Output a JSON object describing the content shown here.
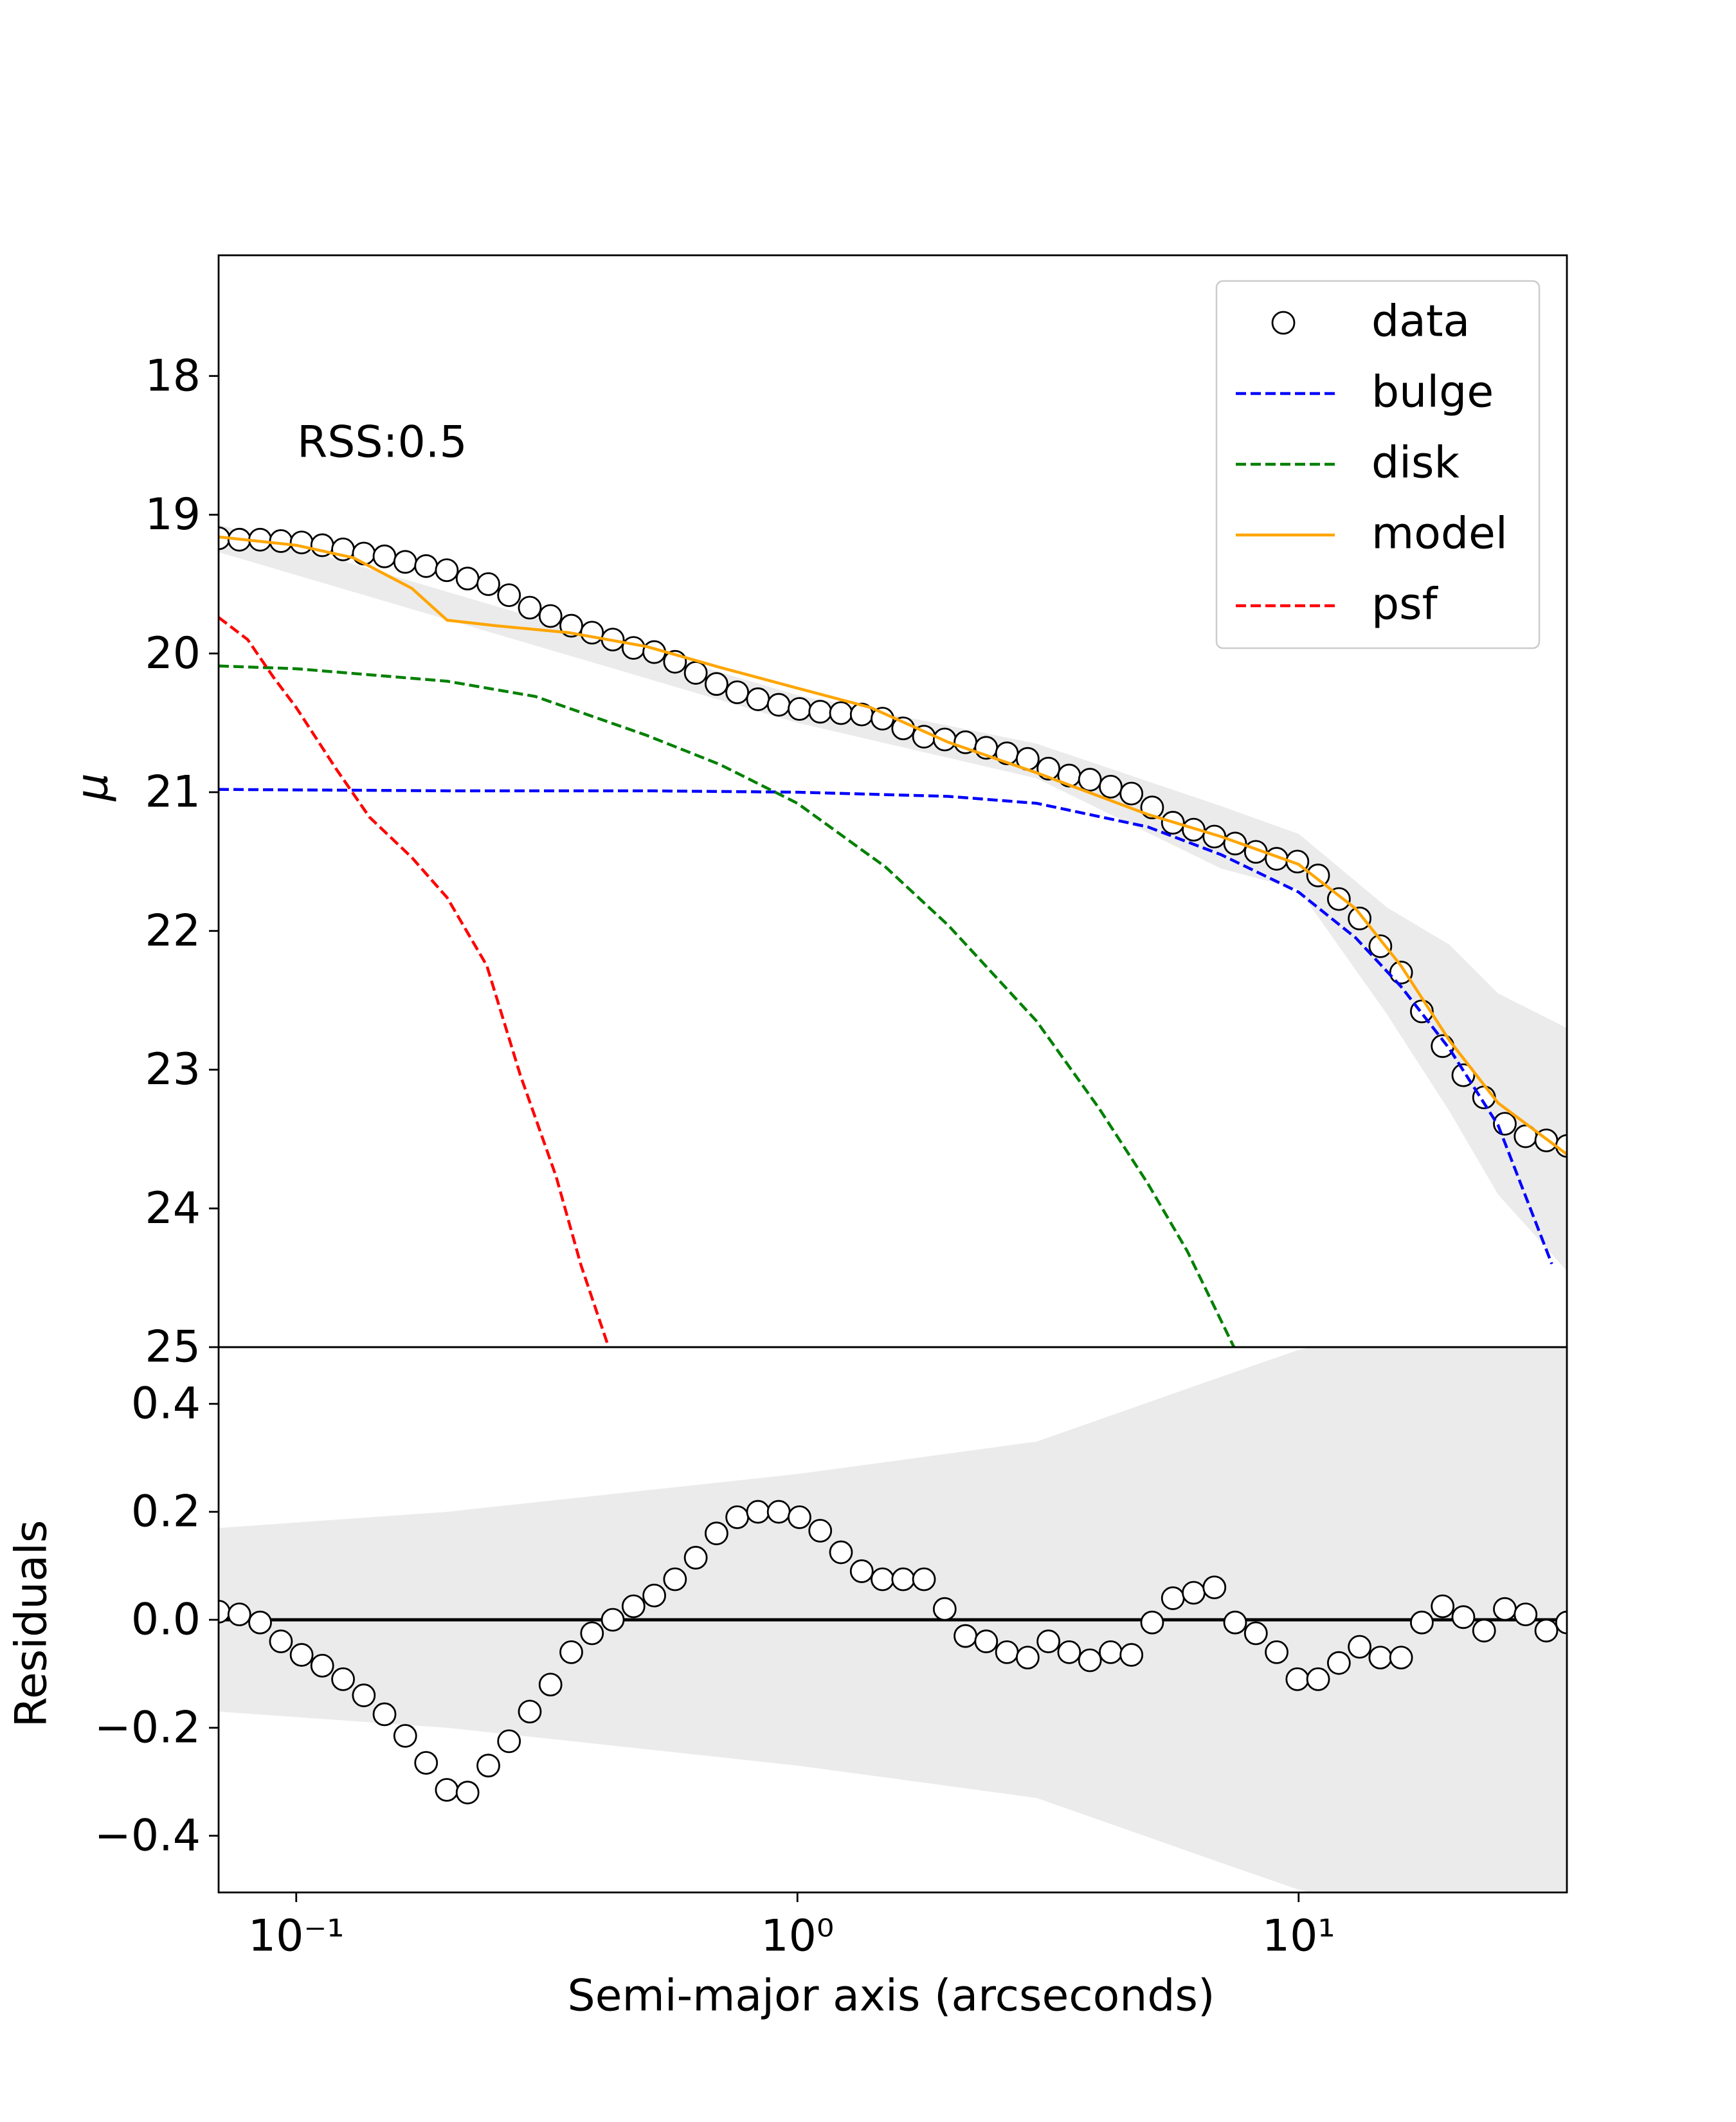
{
  "chart_data": [
    {
      "type": "line",
      "ylabel": "μ",
      "annotation": "RSS:0.5",
      "log_x": true,
      "legend": "upper right",
      "xlim": [
        0.07,
        34.3
      ],
      "ylim": [
        25,
        17.13
      ],
      "yticks": [
        18,
        19,
        20,
        21,
        22,
        23,
        24,
        25
      ],
      "band": {
        "color": "#ebebeb",
        "x": [
          0.07,
          1,
          3,
          7,
          10,
          15,
          20,
          25,
          34.3
        ],
        "lower": [
          19.07,
          20.3,
          20.65,
          21.1,
          21.3,
          21.83,
          22.1,
          22.45,
          22.7
        ],
        "upper": [
          19.27,
          20.5,
          20.9,
          21.55,
          21.7,
          22.6,
          23.3,
          23.9,
          24.45
        ]
      },
      "series": [
        {
          "name": "data",
          "kind": "points",
          "color": "#000000",
          "x": [
            0.07,
            0.077,
            0.0847,
            0.0932,
            0.1025,
            0.1127,
            0.124,
            0.1364,
            0.15,
            0.165,
            0.1816,
            0.1997,
            0.2197,
            0.2417,
            0.2658,
            0.2924,
            0.3216,
            0.3538,
            0.3892,
            0.4281,
            0.4709,
            0.518,
            0.5698,
            0.6268,
            0.6895,
            0.7584,
            0.8343,
            0.9177,
            1.0095,
            1.1104,
            1.2215,
            1.3436,
            1.478,
            1.6258,
            1.7884,
            1.9672,
            2.1639,
            2.3803,
            2.6184,
            2.8802,
            3.1682,
            3.485,
            3.8335,
            4.2169,
            4.6386,
            5.1024,
            5.6127,
            6.1739,
            6.7913,
            7.4705,
            8.2175,
            9.0393,
            9.9432,
            10.9375,
            12.0313,
            13.2344,
            14.5578,
            16.0136,
            17.615,
            19.3765,
            21.3141,
            23.4456,
            25.7901,
            28.3691,
            31.206,
            34.3266
          ],
          "values": [
            19.17,
            19.18,
            19.18,
            19.19,
            19.2,
            19.22,
            19.25,
            19.28,
            19.3,
            19.34,
            19.37,
            19.4,
            19.46,
            19.5,
            19.58,
            19.67,
            19.73,
            19.8,
            19.85,
            19.9,
            19.96,
            19.99,
            20.06,
            20.14,
            20.22,
            20.28,
            20.33,
            20.37,
            20.4,
            20.42,
            20.43,
            20.44,
            20.47,
            20.54,
            20.6,
            20.62,
            20.64,
            20.68,
            20.72,
            20.76,
            20.83,
            20.88,
            20.91,
            20.96,
            21.01,
            21.11,
            21.22,
            21.27,
            21.32,
            21.37,
            21.43,
            21.48,
            21.5,
            21.6,
            21.77,
            21.91,
            22.11,
            22.3,
            22.58,
            22.83,
            23.04,
            23.2,
            23.39,
            23.48,
            23.51,
            23.55
          ]
        },
        {
          "name": "bulge",
          "kind": "line",
          "dashed": true,
          "color": "#0000ff",
          "x": [
            0.07,
            0.2,
            0.5,
            1,
            2,
            3,
            5,
            7,
            10,
            13,
            16,
            20,
            25,
            32
          ],
          "values": [
            20.98,
            20.99,
            20.99,
            21.0,
            21.03,
            21.08,
            21.25,
            21.45,
            21.72,
            22.05,
            22.4,
            22.85,
            23.4,
            24.4
          ]
        },
        {
          "name": "disk",
          "kind": "line",
          "dashed": true,
          "color": "#008000",
          "x": [
            0.07,
            0.1,
            0.2,
            0.3,
            0.5,
            0.7,
            1,
            1.5,
            2,
            3,
            4,
            5,
            6,
            7.5
          ],
          "values": [
            20.09,
            20.11,
            20.2,
            20.31,
            20.59,
            20.8,
            21.08,
            21.54,
            21.96,
            22.65,
            23.28,
            23.82,
            24.31,
            25.03
          ]
        },
        {
          "name": "model",
          "kind": "line",
          "dashed": false,
          "color": "#ffa500",
          "x": [
            0.07,
            0.1,
            0.13,
            0.17,
            0.2,
            0.25,
            0.35,
            0.5,
            0.7,
            1,
            1.4,
            2,
            3,
            5,
            7,
            10,
            13,
            16,
            20,
            25,
            34.3
          ],
          "values": [
            19.16,
            19.22,
            19.31,
            19.53,
            19.76,
            19.8,
            19.85,
            19.95,
            20.1,
            20.25,
            20.39,
            20.64,
            20.86,
            21.16,
            21.32,
            21.52,
            21.84,
            22.25,
            22.79,
            23.24,
            23.61
          ]
        },
        {
          "name": "psf",
          "kind": "line",
          "dashed": true,
          "color": "#ff0000",
          "x": [
            0.07,
            0.08,
            0.09,
            0.1,
            0.12,
            0.14,
            0.17,
            0.2,
            0.24,
            0.28,
            0.33,
            0.37,
            0.42
          ],
          "values": [
            19.74,
            19.9,
            20.17,
            20.39,
            20.83,
            21.18,
            21.47,
            21.76,
            22.25,
            23.04,
            23.77,
            24.41,
            25.0
          ]
        }
      ]
    },
    {
      "type": "scatter",
      "ylabel": "Residuals",
      "xlabel": "Semi-major axis (arcseconds)",
      "log_x": true,
      "xlim": [
        0.07,
        34.3
      ],
      "ylim": [
        -0.505,
        0.505
      ],
      "xticks": [
        {
          "value": 0.1,
          "label": "10⁻¹"
        },
        {
          "value": 1,
          "label": "10⁰"
        },
        {
          "value": 10,
          "label": "10¹"
        }
      ],
      "yticks": [
        {
          "value": -0.4,
          "label": "−0.4"
        },
        {
          "value": -0.2,
          "label": "−0.2"
        },
        {
          "value": 0,
          "label": "0.0"
        },
        {
          "value": 0.2,
          "label": "0.2"
        },
        {
          "value": 0.4,
          "label": "0.4"
        }
      ],
      "hline": 0,
      "color": "#000000",
      "band": {
        "color": "#ebebeb",
        "x": [
          0.07,
          0.2,
          1,
          3,
          7,
          10,
          34.3
        ],
        "lower": [
          -0.17,
          -0.2,
          -0.27,
          -0.33,
          -0.45,
          -0.5,
          -0.6
        ],
        "upper": [
          0.17,
          0.2,
          0.27,
          0.33,
          0.45,
          0.5,
          0.6
        ]
      },
      "x": [
        0.07,
        0.077,
        0.0847,
        0.0932,
        0.1025,
        0.1127,
        0.124,
        0.1364,
        0.15,
        0.165,
        0.1816,
        0.1997,
        0.2197,
        0.2417,
        0.2658,
        0.2924,
        0.3216,
        0.3538,
        0.3892,
        0.4281,
        0.4709,
        0.518,
        0.5698,
        0.6268,
        0.6895,
        0.7584,
        0.8343,
        0.9177,
        1.0095,
        1.1104,
        1.2215,
        1.3436,
        1.478,
        1.6258,
        1.7884,
        1.9672,
        2.1639,
        2.3803,
        2.6184,
        2.8802,
        3.1682,
        3.485,
        3.8335,
        4.2169,
        4.6386,
        5.1024,
        5.6127,
        6.1739,
        6.7913,
        7.4705,
        8.2175,
        9.0393,
        9.9432,
        10.9375,
        12.0313,
        13.2344,
        14.5578,
        16.0136,
        17.615,
        19.3765,
        21.3141,
        23.4456,
        25.7901,
        28.3691,
        31.206,
        34.3266
      ],
      "values": [
        0.015,
        0.01,
        -0.005,
        -0.04,
        -0.065,
        -0.085,
        -0.11,
        -0.14,
        -0.175,
        -0.215,
        -0.265,
        -0.315,
        -0.32,
        -0.27,
        -0.225,
        -0.17,
        -0.12,
        -0.06,
        -0.025,
        0.0,
        0.025,
        0.045,
        0.075,
        0.115,
        0.16,
        0.19,
        0.2,
        0.2,
        0.19,
        0.165,
        0.125,
        0.09,
        0.075,
        0.075,
        0.075,
        0.02,
        -0.03,
        -0.04,
        -0.06,
        -0.07,
        -0.04,
        -0.06,
        -0.075,
        -0.06,
        -0.065,
        -0.005,
        0.04,
        0.05,
        0.06,
        -0.005,
        -0.025,
        -0.06,
        -0.11,
        -0.11,
        -0.08,
        -0.05,
        -0.07,
        -0.07,
        -0.005,
        0.025,
        0.005,
        -0.02,
        0.02,
        0.01,
        -0.02,
        -0.005
      ]
    }
  ]
}
